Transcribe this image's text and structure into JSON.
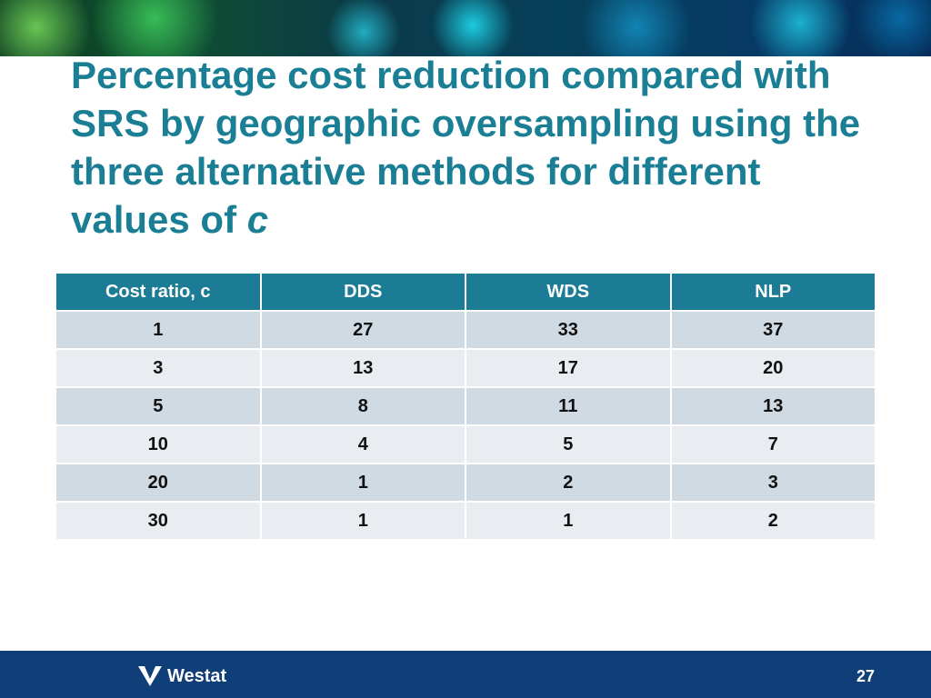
{
  "title": {
    "text": "Percentage cost reduction compared with SRS by geographic oversampling using the three alternative methods for different values of ",
    "italic": "c"
  },
  "table": {
    "headers": [
      "Cost ratio, c",
      "DDS",
      "WDS",
      "NLP"
    ],
    "rows": [
      [
        "1",
        "27",
        "33",
        "37"
      ],
      [
        "3",
        "13",
        "17",
        "20"
      ],
      [
        "5",
        "8",
        "11",
        "13"
      ],
      [
        "10",
        "4",
        "5",
        "7"
      ],
      [
        "20",
        "1",
        "2",
        "3"
      ],
      [
        "30",
        "1",
        "1",
        "2"
      ]
    ]
  },
  "footer": {
    "logo_text": "Westat",
    "page_number": "27"
  },
  "colors": {
    "title": "#1a7f95",
    "header_bg": "#1c7c95",
    "row_dark": "#cfdae3",
    "row_light": "#e9edf1",
    "footer_bg": "#0f3e78"
  }
}
